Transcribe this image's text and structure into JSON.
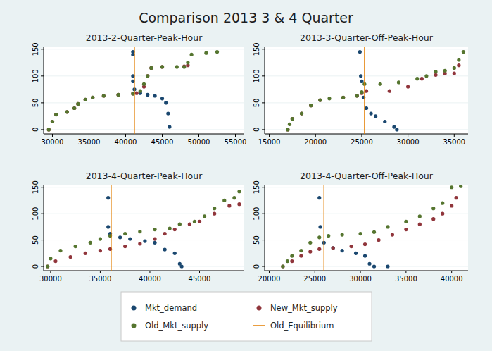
{
  "title": "Comparison 2013 3 & 4 Quarter",
  "legend": "bottom",
  "series": [
    {
      "name": "Mkt_demand",
      "color": "#1a476f",
      "type": "scatter",
      "marker": "circle"
    },
    {
      "name": "New_Mkt_supply",
      "color": "#90353b",
      "type": "scatter",
      "marker": "circle"
    },
    {
      "name": "Old_Mkt_supply",
      "color": "#55752f",
      "type": "scatter",
      "marker": "circle"
    },
    {
      "name": "Old_Equilibrium",
      "color": "#e37e00",
      "type": "line",
      "line_style": "solid"
    }
  ],
  "chart_data": [
    {
      "type": "scatter",
      "title": "2013-2-Quarter-Peak-Hour",
      "grid": true,
      "xlim": [
        28800,
        56200
      ],
      "xticks": [
        30000,
        35000,
        40000,
        45000,
        50000,
        55000
      ],
      "ylim": [
        -8,
        155
      ],
      "yticks": [
        0,
        50,
        100,
        150
      ],
      "old_equilibrium": 41200,
      "series": [
        {
          "x": [
            41000,
            41000,
            41000,
            41000,
            41200,
            42000,
            43000,
            44000,
            45000,
            45500,
            45800,
            46000
          ],
          "values": [
            145,
            140,
            100,
            90,
            75,
            68,
            65,
            63,
            58,
            50,
            30,
            5
          ]
        },
        {
          "x": [
            29500,
            30000,
            30500,
            32000,
            33000,
            33500,
            34500,
            35500,
            37000,
            39000,
            41000,
            41500,
            42500,
            43000,
            43500,
            45000,
            48000,
            48500
          ],
          "values": [
            0,
            15,
            28,
            33,
            40,
            48,
            56,
            60,
            63,
            65,
            67,
            68,
            80,
            100,
            115,
            117,
            118,
            120
          ]
        },
        {
          "x": [
            29500,
            30000,
            30500,
            32000,
            33000,
            33500,
            34500,
            35500,
            37000,
            39000,
            41000,
            42000,
            42500,
            43000,
            43500,
            45000,
            47000,
            48000,
            48500,
            49000,
            51000,
            52500
          ],
          "values": [
            0,
            15,
            28,
            33,
            40,
            48,
            56,
            60,
            63,
            65,
            67,
            72,
            85,
            100,
            115,
            117,
            117,
            117,
            125,
            140,
            143,
            145
          ]
        }
      ]
    },
    {
      "type": "scatter",
      "title": "2013-3-Quarter-Off-Peak-Hour",
      "grid": true,
      "xlim": [
        14500,
        36500
      ],
      "xticks": [
        15000,
        20000,
        25000,
        30000,
        35000
      ],
      "ylim": [
        -8,
        155
      ],
      "yticks": [
        0,
        50,
        100,
        150
      ],
      "old_equilibrium": 25300,
      "series": [
        {
          "x": [
            24800,
            24900,
            25000,
            25200,
            25500,
            26000,
            26500,
            27500,
            28500,
            28800
          ],
          "values": [
            145,
            100,
            90,
            60,
            40,
            30,
            25,
            15,
            5,
            0
          ]
        },
        {
          "x": [
            17000,
            17500,
            18500,
            19500,
            20500,
            23000,
            24500,
            25000,
            25500,
            28000,
            30000,
            31500,
            33000,
            34000,
            35000,
            35500
          ],
          "values": [
            0,
            20,
            30,
            45,
            55,
            60,
            63,
            68,
            72,
            72,
            80,
            95,
            102,
            105,
            105,
            120
          ]
        },
        {
          "x": [
            17000,
            17200,
            17500,
            18500,
            19500,
            20500,
            21500,
            23000,
            24500,
            25000,
            25300,
            27000,
            29000,
            31000,
            32000,
            33000,
            34000,
            35000,
            35500,
            36000
          ],
          "values": [
            0,
            10,
            20,
            30,
            45,
            55,
            58,
            60,
            63,
            70,
            85,
            85,
            88,
            95,
            100,
            108,
            110,
            115,
            130,
            145
          ]
        }
      ]
    },
    {
      "type": "scatter",
      "title": "2013-4-Quarter-Peak-Hour",
      "grid": true,
      "xlim": [
        29300,
        49500
      ],
      "xticks": [
        30000,
        35000,
        40000,
        45000
      ],
      "ylim": [
        -8,
        155
      ],
      "yticks": [
        0,
        50,
        100,
        150
      ],
      "old_equilibrium": 36100,
      "series": [
        {
          "x": [
            35800,
            35800,
            36000,
            37000,
            38000,
            39500,
            40500,
            41500,
            42500,
            43000,
            43200
          ],
          "values": [
            130,
            75,
            62,
            55,
            52,
            48,
            45,
            32,
            25,
            5,
            0
          ]
        },
        {
          "x": [
            29700,
            30500,
            32000,
            33500,
            35000,
            36000,
            37500,
            39000,
            40500,
            41500,
            42500,
            44000,
            45000,
            46500,
            48000,
            49000
          ],
          "values": [
            0,
            10,
            18,
            25,
            30,
            33,
            38,
            43,
            52,
            62,
            70,
            80,
            85,
            100,
            115,
            118
          ]
        },
        {
          "x": [
            29700,
            30000,
            31000,
            32500,
            34000,
            35000,
            36000,
            37500,
            39000,
            40500,
            42000,
            43000,
            44500,
            45500,
            46500,
            47500,
            48500,
            49000
          ],
          "values": [
            0,
            15,
            30,
            38,
            45,
            52,
            58,
            62,
            66,
            70,
            72,
            80,
            85,
            95,
            110,
            125,
            130,
            142
          ]
        }
      ]
    },
    {
      "type": "scatter",
      "title": "2013-4-Quarter-Off-Peak-Hour",
      "grid": true,
      "xlim": [
        19500,
        41800
      ],
      "xticks": [
        20000,
        25000,
        30000,
        35000,
        40000
      ],
      "ylim": [
        -8,
        155
      ],
      "yticks": [
        0,
        50,
        100,
        150
      ],
      "old_equilibrium": 26000,
      "series": [
        {
          "x": [
            25500,
            25600,
            26000,
            27000,
            28000,
            29500,
            30500,
            31000,
            31500,
            33000
          ],
          "values": [
            130,
            75,
            45,
            35,
            30,
            25,
            20,
            5,
            0,
            0
          ]
        },
        {
          "x": [
            21500,
            22500,
            23500,
            24500,
            25500,
            27000,
            29000,
            30500,
            32000,
            33500,
            35000,
            36500,
            38000,
            39000,
            40000,
            40500
          ],
          "values": [
            0,
            10,
            20,
            28,
            33,
            35,
            38,
            42,
            50,
            60,
            70,
            80,
            90,
            100,
            115,
            130
          ]
        },
        {
          "x": [
            21500,
            22000,
            22500,
            23500,
            24500,
            25500,
            26500,
            28000,
            30000,
            31500,
            33000,
            35000,
            36500,
            38000,
            39000,
            40000,
            41000
          ],
          "values": [
            0,
            10,
            20,
            30,
            45,
            55,
            58,
            60,
            62,
            65,
            75,
            85,
            95,
            110,
            120,
            150,
            152
          ]
        }
      ]
    }
  ]
}
